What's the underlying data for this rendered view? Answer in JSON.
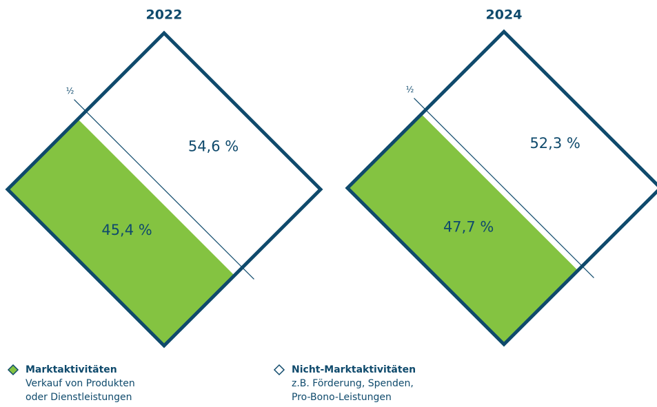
{
  "chart_data": {
    "type": "diamond",
    "categories": [
      "2022",
      "2024"
    ],
    "series": [
      {
        "name": "Marktaktivitäten",
        "description": [
          "Verkauf von Produkten",
          "oder Dienstleistungen"
        ],
        "color": "#84c341",
        "values": [
          45.4,
          47.7
        ],
        "value_labels": [
          "45,4 %",
          "47,7 %"
        ]
      },
      {
        "name": "Nicht-Marktaktivitäten",
        "description": [
          "z.B. Förderung, Spenden,",
          "Pro-Bono-Leistungen"
        ],
        "color": "#ffffff",
        "values": [
          54.6,
          52.3
        ],
        "value_labels": [
          "54,6 %",
          "52,3 %"
        ]
      }
    ],
    "reference": {
      "value": 50,
      "label": "½"
    },
    "frame_color": "#0f4a6c"
  }
}
